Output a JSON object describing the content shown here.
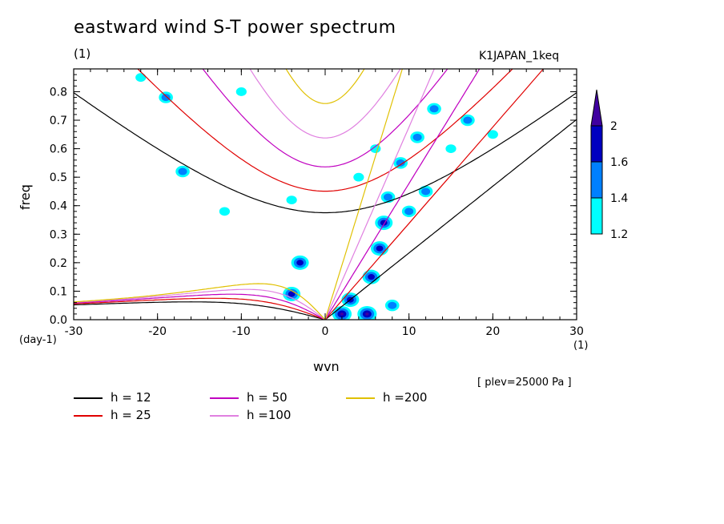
{
  "header": {
    "title": "eastward wind S-T power spectrum",
    "unit_label": "(1)",
    "run_name": "K1JAPAN_1keq"
  },
  "footer": {
    "plev_note": "[ plev=25000 Pa ]",
    "day_unit": "(day-1)",
    "x_unit": "(1)"
  },
  "chart_data": {
    "type": "heatmap",
    "title": "eastward wind S-T power spectrum",
    "xlabel": "wvn",
    "ylabel": "freq",
    "xlim": [
      -30,
      30
    ],
    "ylim": [
      0.0,
      0.88
    ],
    "x_ticks": [
      -30,
      -20,
      -10,
      0,
      10,
      20,
      30
    ],
    "x_tick_labels": [
      "-30",
      "-20",
      "-10",
      "0",
      "10",
      "20",
      "30"
    ],
    "y_ticks": [
      0.0,
      0.1,
      0.2,
      0.3,
      0.4,
      0.5,
      0.6,
      0.7,
      0.8
    ],
    "y_tick_labels": [
      "0.0",
      "0.1",
      "0.2",
      "0.3",
      "0.4",
      "0.5",
      "0.6",
      "0.7",
      "0.8"
    ],
    "colorbar": {
      "levels": [
        1.2,
        1.4,
        1.6,
        2
      ],
      "level_labels": [
        "1.2",
        "1.4",
        "1.6",
        "2"
      ],
      "colors": [
        "#00ffff",
        "#0080ff",
        "#0000c0",
        "#4000a0"
      ]
    },
    "dispersion_curves": [
      {
        "label": "h = 12",
        "h": 12,
        "color": "#000000"
      },
      {
        "label": "h = 25",
        "h": 25,
        "color": "#e00000"
      },
      {
        "label": "h = 50",
        "h": 50,
        "color": "#c000c0"
      },
      {
        "label": "h =100",
        "h": 100,
        "color": "#e080e0"
      },
      {
        "label": "h =200",
        "h": 200,
        "color": "#e0c000"
      }
    ],
    "spectral_peaks": [
      {
        "wvn": 2.0,
        "freq": 0.02,
        "level": 4
      },
      {
        "wvn": 5.0,
        "freq": 0.02,
        "level": 4
      },
      {
        "wvn": 3.0,
        "freq": 0.07,
        "level": 3
      },
      {
        "wvn": 5.5,
        "freq": 0.15,
        "level": 3
      },
      {
        "wvn": 6.5,
        "freq": 0.25,
        "level": 3
      },
      {
        "wvn": 7.0,
        "freq": 0.34,
        "level": 3
      },
      {
        "wvn": 7.5,
        "freq": 0.43,
        "level": 2
      },
      {
        "wvn": 9.0,
        "freq": 0.55,
        "level": 2
      },
      {
        "wvn": 11.0,
        "freq": 0.64,
        "level": 2
      },
      {
        "wvn": 13.0,
        "freq": 0.74,
        "level": 2
      },
      {
        "wvn": -3.0,
        "freq": 0.2,
        "level": 3
      },
      {
        "wvn": -4.0,
        "freq": 0.09,
        "level": 3
      },
      {
        "wvn": 12.0,
        "freq": 0.45,
        "level": 2
      },
      {
        "wvn": 10.0,
        "freq": 0.38,
        "level": 2
      },
      {
        "wvn": -19.0,
        "freq": 0.78,
        "level": 2
      },
      {
        "wvn": -17.0,
        "freq": 0.52,
        "level": 2
      },
      {
        "wvn": 8.0,
        "freq": 0.05,
        "level": 2
      },
      {
        "wvn": 17.0,
        "freq": 0.7,
        "level": 2
      },
      {
        "wvn": -22.0,
        "freq": 0.85,
        "level": 1
      },
      {
        "wvn": -10.0,
        "freq": 0.8,
        "level": 1
      },
      {
        "wvn": 4.0,
        "freq": 0.5,
        "level": 1
      },
      {
        "wvn": 6.0,
        "freq": 0.6,
        "level": 1
      },
      {
        "wvn": -12.0,
        "freq": 0.38,
        "level": 1
      },
      {
        "wvn": -4.0,
        "freq": 0.42,
        "level": 1
      },
      {
        "wvn": 15.0,
        "freq": 0.6,
        "level": 1
      },
      {
        "wvn": 20.0,
        "freq": 0.65,
        "level": 1
      }
    ]
  }
}
